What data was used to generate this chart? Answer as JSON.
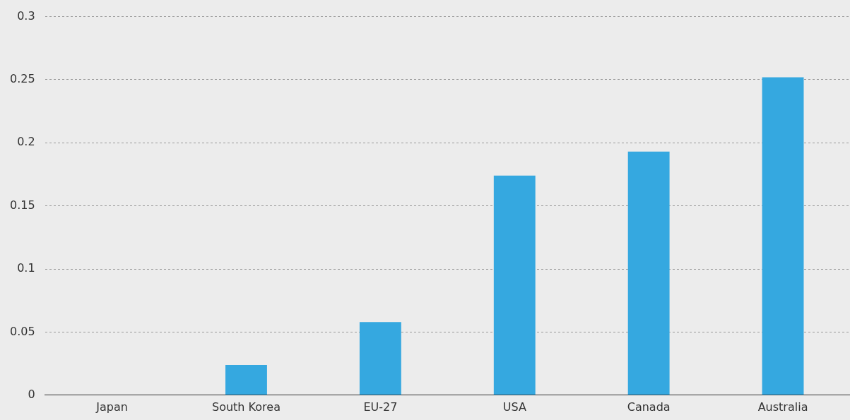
{
  "chart_data": {
    "type": "bar",
    "categories": [
      "Japan",
      "South Korea",
      "EU-27",
      "USA",
      "Canada",
      "Australia"
    ],
    "values": [
      0,
      0.024,
      0.058,
      0.174,
      0.193,
      0.252
    ],
    "color": "#35a8e0",
    "ylim": [
      0,
      0.3
    ],
    "yticks": [
      0,
      0.05,
      0.1,
      0.15,
      0.2,
      0.25,
      0.3
    ],
    "grid": "y",
    "legend": false
  }
}
